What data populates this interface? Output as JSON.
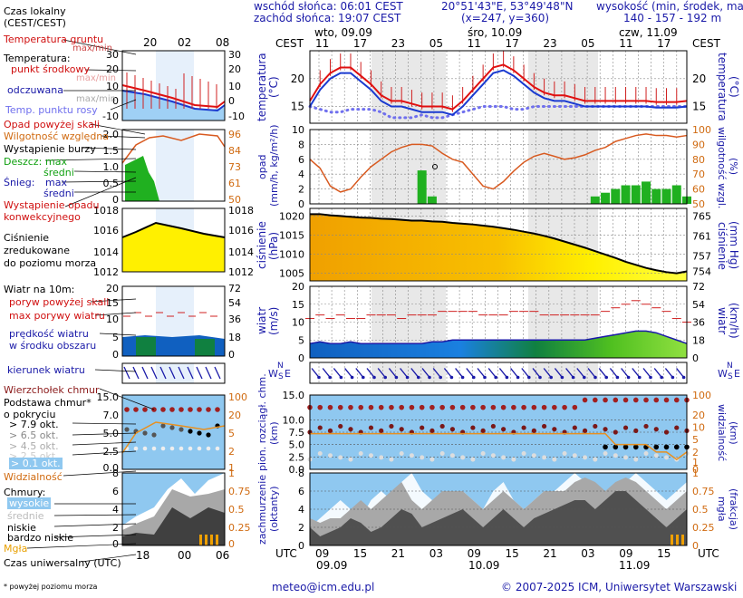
{
  "header": {
    "sunrise": "wschód słońca: 06:01 CEST",
    "sunset": "zachód słońca: 19:07 CEST",
    "coords": "20°51'43\"E, 53°49'48\"N",
    "grid": "(x=247, y=360)",
    "altitude_label": "wysokość (min, środek, max)",
    "altitude_values": "140 - 157 - 192 m"
  },
  "timeline": {
    "cest_label": "CEST",
    "utc_label": "UTC",
    "days_top": [
      "wto, 09.09",
      "śro, 10.09",
      "czw, 11.09"
    ],
    "hours_top": [
      "11",
      "17",
      "23",
      "05",
      "11",
      "17",
      "23",
      "05",
      "11",
      "17"
    ],
    "hours_bottom": [
      "09",
      "15",
      "21",
      "03",
      "09",
      "15",
      "21",
      "03",
      "09",
      "15"
    ],
    "dates_bottom": [
      "09.09",
      "10.09",
      "11.09"
    ]
  },
  "legend": {
    "local_time": "Czas lokalny\n(CEST/CEST)",
    "local_hours": [
      "20",
      "02",
      "08"
    ],
    "utc_time": "Czas uniwersalny (UTC)",
    "utc_hours": [
      "18",
      "00",
      "06"
    ],
    "ground_temp": "Temperatura gruntu",
    "maxmin": "max/min",
    "temperature": "Temperatura:",
    "mid_point": "punkt środkowy",
    "max_min2": "max/min",
    "perceived": "odczuwana",
    "dewpoint": "Temp. punktu rosy",
    "precip_above": "Opad powyżej skali",
    "humidity": "Wilgotność względna",
    "storm": "Wystąpienie burzy",
    "rain": "Deszcz:",
    "rain_max": "max",
    "rain_mean": "średni",
    "snow": "Śnieg:",
    "snow_max": "max",
    "snow_mean": "średni",
    "conv_precip": "Wystąpienie opadu\nkonwekcyjnego",
    "pressure": "Ciśnienie\nzredukowane\ndo poziomu morza",
    "wind": "Wiatr na 10m:",
    "gust_above": "poryw powyżej skali",
    "max_gust": "max porywy wiatru",
    "wind_speed": "prędkość wiatru\nw środku obszaru",
    "wind_dir": "kierunek wiatru",
    "shear": "Wierzchołek chmur",
    "cloud_base": "Podstawa chmur*\no pokryciu",
    "okt79": "> 7.9 okt.",
    "okt65": "> 6.5 okt.",
    "okt45": "> 4.5 okt.",
    "okt25": "> 2.5 okt.",
    "okt01": "> 0.1 okt.",
    "visibility": "Widzialność",
    "clouds": "Chmury:",
    "high": "wysokie",
    "medium": "średnie",
    "low": "niskie",
    "very_low": "bardzo niskie",
    "fog": "Mgła",
    "footnote": "* powyżej poziomu morza"
  },
  "panel_labels": {
    "temp_left": "temperatura\n(°C)",
    "temp_right": "(°C)\ntemperatura",
    "precip_left": "opad\n(mm/h, kg/m²/h)",
    "precip_right": "(%)\nwilgotność wzgl.",
    "press_left": "ciśnienie\n(hPa)",
    "press_right": "(mm Hg)\nciśnienie",
    "wind_left": "wiatr\n(m/s)",
    "wind_right": "(km/h)\nwiatr",
    "cloudbase_left": "pion. rozciągł. chm.\n(km)",
    "cloudbase_right": "(km)\nwidzialność",
    "cloud_left": "zachmurzenie\n(oktanty)",
    "cloud_right": "(frakcja)\nmgła",
    "dir_n": "N",
    "dir_w": "W",
    "dir_s": "S",
    "dir_e": "E"
  },
  "footer": {
    "email": "meteo@icm.edu.pl",
    "copyright": "© 2007-2025 ICM, Uniwersytet Warszawski"
  },
  "chart_data": [
    {
      "type": "line",
      "title": "temperatura",
      "ylabel": "temperatura (°C)",
      "ylim": [
        12,
        25
      ],
      "yticks": [
        15,
        20
      ],
      "series": [
        {
          "name": "temperatura",
          "values": [
            16,
            19,
            21,
            22,
            22,
            20.5,
            19,
            17,
            16,
            16,
            15.5,
            15,
            15,
            15,
            14.5,
            16,
            18,
            20,
            22,
            22.5,
            21.5,
            20,
            18.5,
            17.5,
            17,
            17,
            16.5,
            16,
            16,
            16,
            16,
            16,
            16,
            16,
            15.8,
            15.8,
            15.8,
            16
          ]
        },
        {
          "name": "odczuwana",
          "values": [
            15,
            18,
            20,
            21,
            21,
            19.5,
            18,
            16,
            15,
            15,
            14.5,
            14,
            14,
            14,
            13.5,
            15,
            17,
            19,
            21,
            21.5,
            20.5,
            19,
            17.5,
            16.5,
            16,
            16,
            15.5,
            15,
            15,
            15,
            15,
            15,
            15,
            15,
            14.8,
            14.8,
            14.8,
            15
          ]
        },
        {
          "name": "Temp. punktu rosy",
          "values": [
            15,
            14.5,
            14,
            14,
            14.5,
            14.5,
            14.5,
            14,
            13,
            13,
            13,
            13.5,
            13,
            13,
            13.5,
            14,
            14.5,
            15,
            15,
            15,
            14.5,
            14.5,
            15,
            15,
            15,
            15,
            15,
            15,
            15,
            15,
            15,
            15,
            15,
            15,
            15,
            15,
            15,
            15
          ]
        }
      ]
    },
    {
      "type": "bar",
      "title": "opad",
      "ylabel": "opad (mm/h, kg/m²/h)",
      "ylim": [
        0,
        10
      ],
      "y2label": "wilgotność wzgl. (%)",
      "y2lim": [
        50,
        100
      ],
      "series": [
        {
          "name": "Wilgotność względna",
          "values": [
            80,
            74,
            62,
            58,
            60,
            68,
            75,
            80,
            85,
            88,
            90,
            90,
            89,
            84,
            80,
            78,
            70,
            62,
            60,
            65,
            72,
            78,
            82,
            84,
            82,
            80,
            81,
            83,
            86,
            88,
            92,
            94,
            96,
            97,
            96,
            96,
            95,
            96
          ]
        },
        {
          "name": "Deszcz max",
          "values": [
            0,
            0,
            0,
            0,
            0,
            0,
            0,
            0,
            0,
            0,
            0,
            4.5,
            1,
            0,
            0,
            0,
            0,
            0,
            0,
            0,
            0,
            0,
            0,
            0,
            0,
            0,
            0,
            0,
            1,
            1.5,
            2,
            2.5,
            2.5,
            3,
            2,
            2,
            2.5,
            1
          ]
        }
      ]
    },
    {
      "type": "area",
      "title": "ciśnienie",
      "ylabel": "ciśnienie (hPa)",
      "ylim": [
        1003,
        1022
      ],
      "y2label": "ciśnienie (mm Hg)",
      "yticks": [
        1005,
        1010,
        1015,
        1020
      ],
      "y2ticks": [
        754,
        757,
        761,
        765
      ],
      "series": [
        {
          "name": "ciśnienie",
          "values": [
            1020.5,
            1020.5,
            1020.2,
            1020,
            1019.8,
            1019.6,
            1019.5,
            1019.3,
            1019.2,
            1019,
            1018.8,
            1018.8,
            1018.6,
            1018.5,
            1018.2,
            1018,
            1017.8,
            1017.5,
            1017.2,
            1016.8,
            1016.4,
            1015.9,
            1015.4,
            1014.8,
            1014.1,
            1013.3,
            1012.5,
            1011.7,
            1010.8,
            1009.9,
            1009,
            1008,
            1007.2,
            1006.4,
            1005.8,
            1005.3,
            1005,
            1005.5
          ]
        }
      ]
    },
    {
      "type": "line",
      "title": "wiatr",
      "ylabel": "wiatr (m/s)",
      "ylim": [
        0,
        20
      ],
      "yticks": [
        0,
        5,
        10,
        15,
        20
      ],
      "y2label": "wiatr (km/h)",
      "y2ticks": [
        0,
        18,
        36,
        54,
        72
      ],
      "series": [
        {
          "name": "max porywy wiatru",
          "values": [
            11,
            12,
            11,
            12,
            11,
            11,
            12,
            12,
            12,
            11,
            12,
            12,
            12,
            13,
            13,
            13,
            13,
            12,
            12,
            12,
            13,
            13,
            13,
            12,
            12,
            12,
            12,
            12,
            12,
            13,
            14,
            15,
            16,
            15,
            14,
            13,
            11,
            10
          ]
        },
        {
          "name": "prędkość wiatru",
          "values": [
            4,
            4.5,
            4,
            4,
            4.5,
            4,
            4,
            4,
            4,
            4,
            4,
            4,
            4.5,
            4.5,
            5,
            5,
            5,
            5,
            5,
            5,
            5,
            5,
            5,
            5,
            5,
            5,
            5,
            5,
            5.5,
            6,
            6.5,
            7,
            7.5,
            7.5,
            7,
            6,
            5,
            4
          ]
        }
      ]
    },
    {
      "type": "scatter",
      "title": "pion. rozciągł. chm.",
      "ylabel": "pion. rozciągł. chm. (km)",
      "ylim": [
        0,
        15
      ],
      "yticks": [
        0,
        2.5,
        5,
        7.5,
        10,
        15
      ],
      "y2label": "widzialność (km)",
      "y2ticks": [
        0,
        1,
        2,
        5,
        10,
        20,
        100
      ],
      "series": [
        {
          "name": "Widzialność",
          "values": [
            20,
            20,
            20,
            20,
            20,
            20,
            20,
            20,
            20,
            20,
            20,
            20,
            20,
            20,
            20,
            20,
            20,
            20,
            20,
            20,
            20,
            20,
            20,
            20,
            20,
            20,
            20,
            20,
            20,
            20,
            10,
            10,
            10,
            10,
            8,
            6,
            3,
            5
          ]
        }
      ]
    },
    {
      "type": "area",
      "title": "zachmurzenie",
      "ylabel": "zachmurzenie (oktanty)",
      "ylim": [
        0,
        8
      ],
      "yticks": [
        0,
        2,
        4,
        6,
        8
      ],
      "y2label": "mgła (frakcja)",
      "y2ticks": [
        0,
        0.25,
        0.5,
        0.75,
        1
      ],
      "series": [
        {
          "name": "niskie",
          "values": [
            2,
            1,
            1.5,
            2,
            3,
            2.5,
            1.5,
            2,
            3,
            4,
            3.5,
            2,
            2.5,
            3,
            3.5,
            4,
            3,
            2,
            3,
            4,
            3,
            2,
            3,
            3.5,
            4,
            4.5,
            5,
            5,
            4,
            5,
            6,
            6,
            5,
            4,
            3,
            2,
            3,
            4
          ]
        },
        {
          "name": "średnie",
          "values": [
            3,
            2.5,
            3,
            3,
            4,
            5,
            4,
            5,
            6,
            7,
            5,
            4,
            5,
            6,
            6,
            6,
            5,
            4,
            5,
            6,
            5,
            4,
            5,
            6,
            6,
            6,
            7,
            7.5,
            7,
            6,
            7,
            7.5,
            7,
            6,
            5,
            4,
            5,
            6
          ]
        },
        {
          "name": "wysokie",
          "values": [
            2,
            3,
            4,
            5,
            4,
            3,
            5,
            6,
            5,
            7,
            8,
            6,
            5,
            4,
            5,
            6,
            5,
            4,
            6,
            7,
            5,
            4,
            5,
            6,
            6,
            7,
            8,
            7,
            6,
            5,
            6,
            7,
            8,
            7,
            6,
            5,
            6,
            7
          ]
        }
      ]
    }
  ]
}
